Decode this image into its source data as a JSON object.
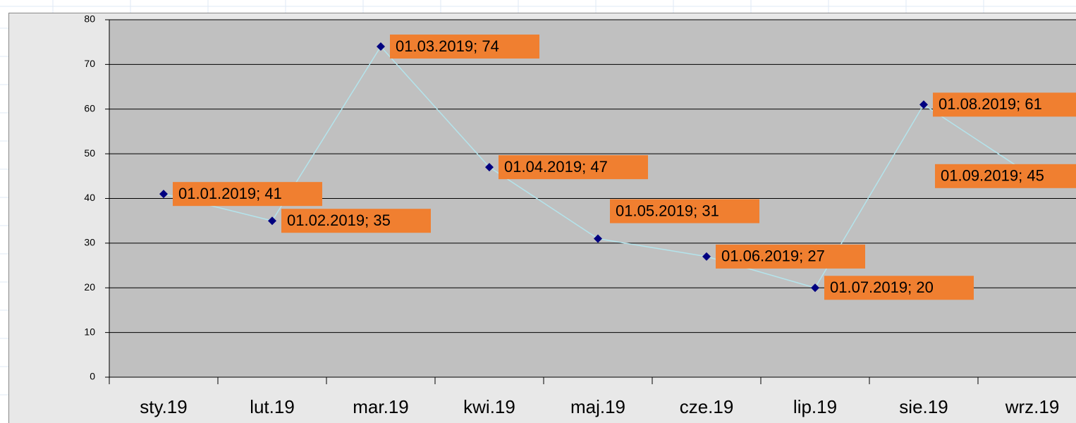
{
  "chart_data": {
    "type": "line",
    "categories": [
      "sty.19",
      "lut.19",
      "mar.19",
      "kwi.19",
      "maj.19",
      "cze.19",
      "lip.19",
      "sie.19",
      "wrz.19"
    ],
    "series": [
      {
        "color": "#000080",
        "line_color": "#b4e4ec",
        "values": [
          41,
          35,
          74,
          47,
          31,
          27,
          20,
          61,
          45
        ],
        "value_labels": [
          "01.01.2019; 41",
          "01.02.2019; 35",
          "01.03.2019; 74",
          "01.04.2019; 47",
          "01.05.2019; 31",
          "01.06.2019; 27",
          "01.07.2019; 20",
          "01.08.2019; 61",
          "01.09.2019; 45"
        ]
      }
    ],
    "ylim": [
      0,
      80
    ],
    "yticks": [
      0,
      10,
      20,
      30,
      40,
      50,
      60,
      70,
      80
    ],
    "grid": true,
    "label_color": "#f07f30",
    "plot_background": "#c0c0c0"
  }
}
